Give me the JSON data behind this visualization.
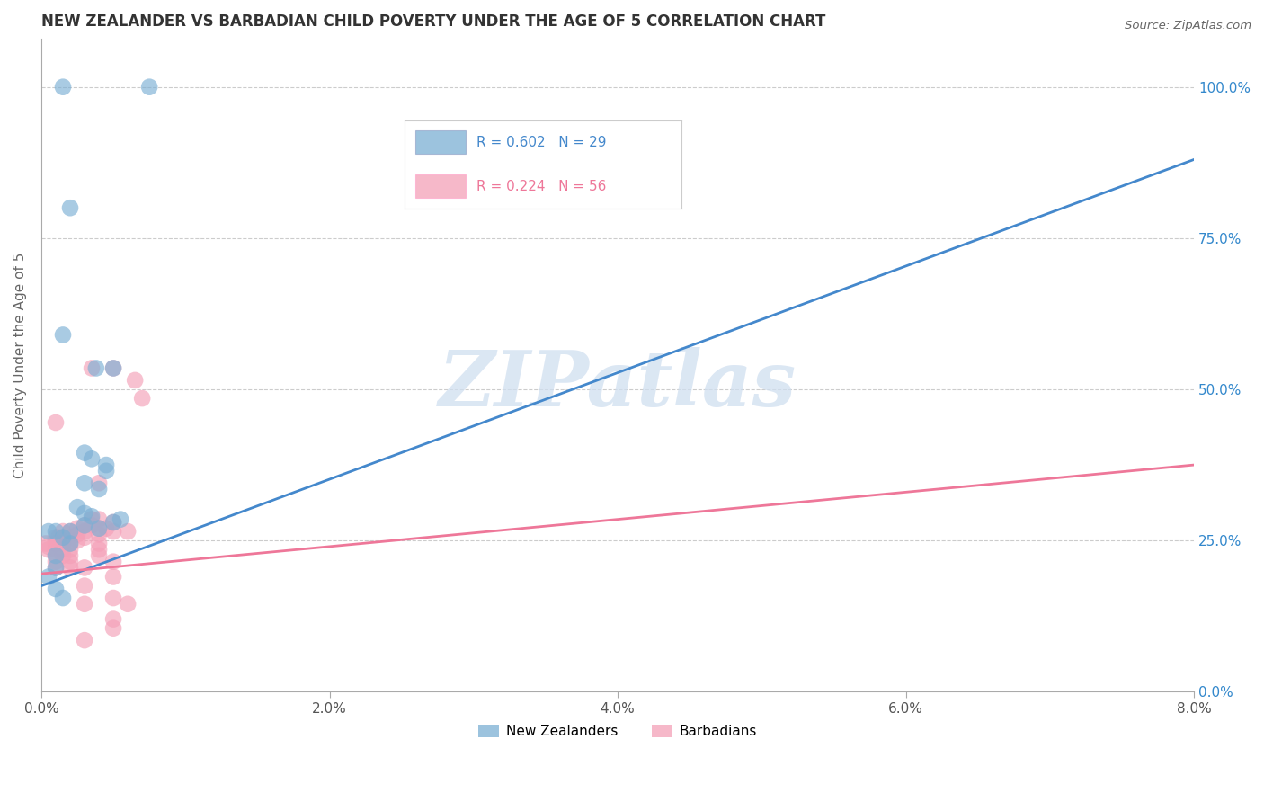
{
  "title": "NEW ZEALANDER VS BARBADIAN CHILD POVERTY UNDER THE AGE OF 5 CORRELATION CHART",
  "source": "Source: ZipAtlas.com",
  "xlabel_ticks": [
    "0.0%",
    "2.0%",
    "4.0%",
    "6.0%",
    "8.0%"
  ],
  "xlabel_tick_vals": [
    0.0,
    0.02,
    0.04,
    0.06,
    0.08
  ],
  "ylabel_ticks": [
    "0.0%",
    "25.0%",
    "50.0%",
    "75.0%",
    "100.0%"
  ],
  "ylabel_tick_vals": [
    0.0,
    0.25,
    0.5,
    0.75,
    1.0
  ],
  "ylabel": "Child Poverty Under the Age of 5",
  "nz_legend": "New Zealanders",
  "bb_legend": "Barbadians",
  "nz_R": "R = 0.602",
  "nz_N": "N = 29",
  "bb_R": "R = 0.224",
  "bb_N": "N = 56",
  "nz_color": "#7BAFD4",
  "bb_color": "#F4A0B8",
  "nz_line_color": "#4488CC",
  "bb_line_color": "#EE7799",
  "watermark": "ZIPatlas",
  "watermark_color": "#D0DFF0",
  "nz_line_x0": 0.0,
  "nz_line_y0": 0.175,
  "nz_line_x1": 0.08,
  "nz_line_y1": 0.88,
  "bb_line_x0": 0.0,
  "bb_line_y0": 0.195,
  "bb_line_x1": 0.08,
  "bb_line_y1": 0.375,
  "nz_points": [
    [
      0.0015,
      1.0
    ],
    [
      0.0075,
      1.0
    ],
    [
      0.002,
      0.8
    ],
    [
      0.005,
      0.535
    ],
    [
      0.0038,
      0.535
    ],
    [
      0.0015,
      0.59
    ],
    [
      0.003,
      0.395
    ],
    [
      0.0035,
      0.385
    ],
    [
      0.0045,
      0.375
    ],
    [
      0.0045,
      0.365
    ],
    [
      0.003,
      0.345
    ],
    [
      0.004,
      0.335
    ],
    [
      0.0025,
      0.305
    ],
    [
      0.003,
      0.295
    ],
    [
      0.0035,
      0.29
    ],
    [
      0.003,
      0.275
    ],
    [
      0.0055,
      0.285
    ],
    [
      0.004,
      0.27
    ],
    [
      0.005,
      0.28
    ],
    [
      0.002,
      0.265
    ],
    [
      0.001,
      0.265
    ],
    [
      0.0005,
      0.265
    ],
    [
      0.0015,
      0.255
    ],
    [
      0.002,
      0.245
    ],
    [
      0.001,
      0.225
    ],
    [
      0.001,
      0.205
    ],
    [
      0.0005,
      0.19
    ],
    [
      0.001,
      0.17
    ],
    [
      0.0015,
      0.155
    ]
  ],
  "bb_points": [
    [
      0.0003,
      0.245
    ],
    [
      0.0005,
      0.24
    ],
    [
      0.0005,
      0.235
    ],
    [
      0.001,
      0.255
    ],
    [
      0.001,
      0.245
    ],
    [
      0.001,
      0.235
    ],
    [
      0.001,
      0.225
    ],
    [
      0.001,
      0.215
    ],
    [
      0.001,
      0.205
    ],
    [
      0.001,
      0.445
    ],
    [
      0.0012,
      0.255
    ],
    [
      0.0015,
      0.265
    ],
    [
      0.0015,
      0.255
    ],
    [
      0.0015,
      0.245
    ],
    [
      0.0015,
      0.235
    ],
    [
      0.0015,
      0.225
    ],
    [
      0.002,
      0.265
    ],
    [
      0.002,
      0.255
    ],
    [
      0.002,
      0.245
    ],
    [
      0.002,
      0.235
    ],
    [
      0.002,
      0.225
    ],
    [
      0.002,
      0.215
    ],
    [
      0.002,
      0.205
    ],
    [
      0.0025,
      0.27
    ],
    [
      0.0025,
      0.26
    ],
    [
      0.0025,
      0.25
    ],
    [
      0.003,
      0.275
    ],
    [
      0.003,
      0.265
    ],
    [
      0.003,
      0.255
    ],
    [
      0.003,
      0.205
    ],
    [
      0.003,
      0.175
    ],
    [
      0.003,
      0.145
    ],
    [
      0.003,
      0.085
    ],
    [
      0.0035,
      0.285
    ],
    [
      0.0035,
      0.275
    ],
    [
      0.0035,
      0.535
    ],
    [
      0.004,
      0.285
    ],
    [
      0.004,
      0.27
    ],
    [
      0.004,
      0.26
    ],
    [
      0.004,
      0.245
    ],
    [
      0.004,
      0.235
    ],
    [
      0.004,
      0.225
    ],
    [
      0.004,
      0.345
    ],
    [
      0.0045,
      0.27
    ],
    [
      0.005,
      0.28
    ],
    [
      0.005,
      0.265
    ],
    [
      0.005,
      0.215
    ],
    [
      0.005,
      0.19
    ],
    [
      0.005,
      0.155
    ],
    [
      0.005,
      0.105
    ],
    [
      0.005,
      0.12
    ],
    [
      0.006,
      0.265
    ],
    [
      0.006,
      0.145
    ],
    [
      0.007,
      0.485
    ],
    [
      0.0065,
      0.515
    ],
    [
      0.005,
      0.535
    ]
  ]
}
